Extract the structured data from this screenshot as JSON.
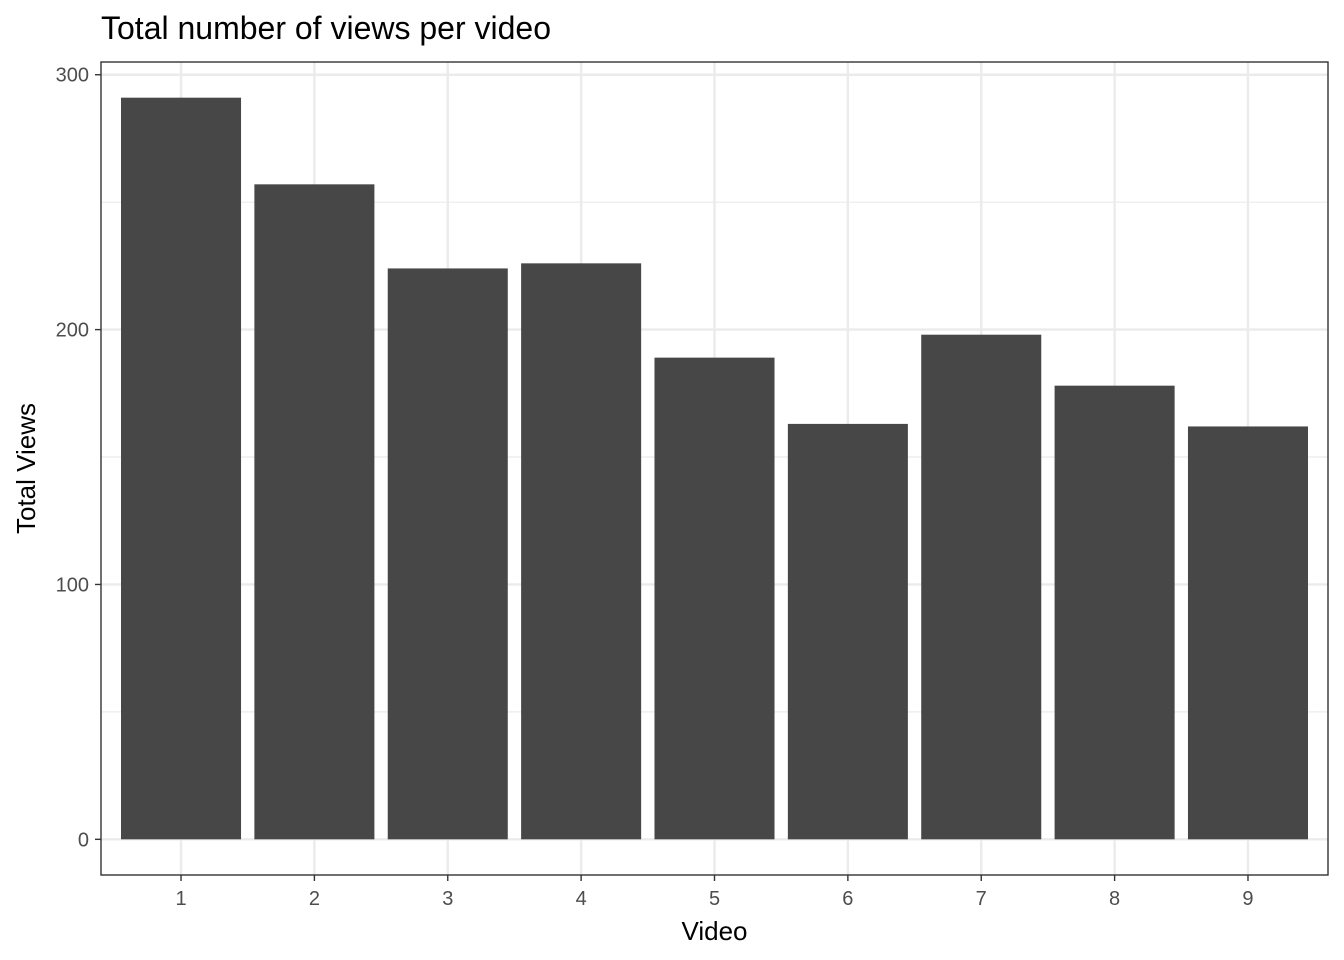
{
  "chart_data": {
    "type": "bar",
    "title": "Total number of views per video",
    "xlabel": "Video",
    "ylabel": "Total Views",
    "categories": [
      "1",
      "2",
      "3",
      "4",
      "5",
      "6",
      "7",
      "8",
      "9"
    ],
    "values": [
      291,
      257,
      224,
      226,
      189,
      163,
      198,
      178,
      162
    ],
    "ylim": [
      -14,
      305
    ],
    "yticks": [
      0,
      100,
      200,
      300
    ],
    "ytick_labels": [
      "0",
      "100",
      "200",
      "300"
    ],
    "grid": true,
    "bar_color": "#474747",
    "grid_color": "#ebebeb",
    "panel_border_color": "#333333"
  }
}
